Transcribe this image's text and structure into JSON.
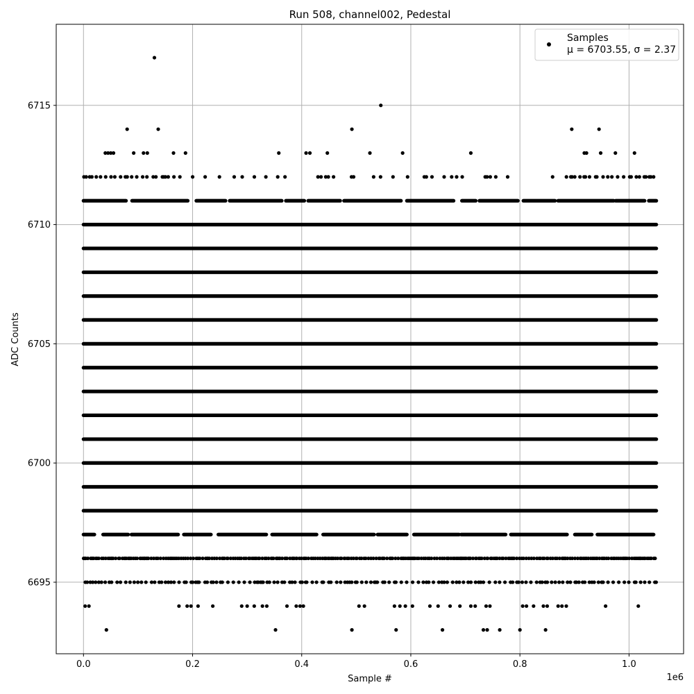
{
  "chart_data": {
    "type": "scatter",
    "title": "Run 508, channel002, Pedestal",
    "xlabel": "Sample #",
    "ylabel": "ADC Counts",
    "x_offset_label": "1e6",
    "xlim": [
      -50000,
      1100000
    ],
    "ylim": [
      6692,
      6718.4
    ],
    "x_ticks": [
      0.0,
      0.2,
      0.4,
      0.6,
      0.8,
      1.0
    ],
    "x_tick_labels": [
      "0.0",
      "0.2",
      "0.4",
      "0.6",
      "0.8",
      "1.0"
    ],
    "y_ticks": [
      6695,
      6700,
      6705,
      6710,
      6715
    ],
    "y_tick_labels": [
      "6695",
      "6700",
      "6705",
      "6710",
      "6715"
    ],
    "grid": true,
    "legend_position": "top-right",
    "legend": {
      "series_name": "Samples",
      "stats": "μ = 6703.55, σ = 2.37"
    },
    "series": [
      {
        "name": "Samples",
        "color": "#000000",
        "x_range": [
          0,
          1050000
        ],
        "dense_levels": [
          6698,
          6699,
          6700,
          6701,
          6702,
          6703,
          6704,
          6705,
          6706,
          6707,
          6708,
          6709,
          6710
        ],
        "medium_levels": [
          6697,
          6711
        ],
        "sparse_levels": [
          6695,
          6696,
          6712
        ],
        "points": [
          [
            130000,
            6717
          ],
          [
            545000,
            6715
          ],
          [
            80000,
            6714
          ],
          [
            137000,
            6714
          ],
          [
            492000,
            6714
          ],
          [
            895000,
            6714
          ],
          [
            945000,
            6714
          ],
          [
            40000,
            6713
          ],
          [
            45000,
            6713
          ],
          [
            50000,
            6713
          ],
          [
            55000,
            6713
          ],
          [
            92000,
            6713
          ],
          [
            110000,
            6713
          ],
          [
            117000,
            6713
          ],
          [
            165000,
            6713
          ],
          [
            187000,
            6713
          ],
          [
            358000,
            6713
          ],
          [
            408000,
            6713
          ],
          [
            415000,
            6713
          ],
          [
            447000,
            6713
          ],
          [
            525000,
            6713
          ],
          [
            585000,
            6713
          ],
          [
            710000,
            6713
          ],
          [
            918000,
            6713
          ],
          [
            922000,
            6713
          ],
          [
            948000,
            6713
          ],
          [
            975000,
            6713
          ],
          [
            1010000,
            6713
          ],
          [
            3000,
            6694
          ],
          [
            10000,
            6694
          ],
          [
            175000,
            6694
          ],
          [
            190000,
            6694
          ],
          [
            197000,
            6694
          ],
          [
            210000,
            6694
          ],
          [
            237000,
            6694
          ],
          [
            290000,
            6694
          ],
          [
            300000,
            6694
          ],
          [
            313000,
            6694
          ],
          [
            328000,
            6694
          ],
          [
            336000,
            6694
          ],
          [
            373000,
            6694
          ],
          [
            390000,
            6694
          ],
          [
            397000,
            6694
          ],
          [
            403000,
            6694
          ],
          [
            505000,
            6694
          ],
          [
            515000,
            6694
          ],
          [
            570000,
            6694
          ],
          [
            580000,
            6694
          ],
          [
            590000,
            6694
          ],
          [
            603000,
            6694
          ],
          [
            635000,
            6694
          ],
          [
            650000,
            6694
          ],
          [
            672000,
            6694
          ],
          [
            690000,
            6694
          ],
          [
            710000,
            6694
          ],
          [
            718000,
            6694
          ],
          [
            738000,
            6694
          ],
          [
            745000,
            6694
          ],
          [
            805000,
            6694
          ],
          [
            812000,
            6694
          ],
          [
            825000,
            6694
          ],
          [
            843000,
            6694
          ],
          [
            850000,
            6694
          ],
          [
            870000,
            6694
          ],
          [
            877000,
            6694
          ],
          [
            885000,
            6694
          ],
          [
            957000,
            6694
          ],
          [
            1017000,
            6694
          ],
          [
            42000,
            6693
          ],
          [
            352000,
            6693
          ],
          [
            492000,
            6693
          ],
          [
            573000,
            6693
          ],
          [
            658000,
            6693
          ],
          [
            733000,
            6693
          ],
          [
            740000,
            6693
          ],
          [
            763000,
            6693
          ],
          [
            800000,
            6693
          ],
          [
            847000,
            6693
          ]
        ]
      }
    ]
  }
}
